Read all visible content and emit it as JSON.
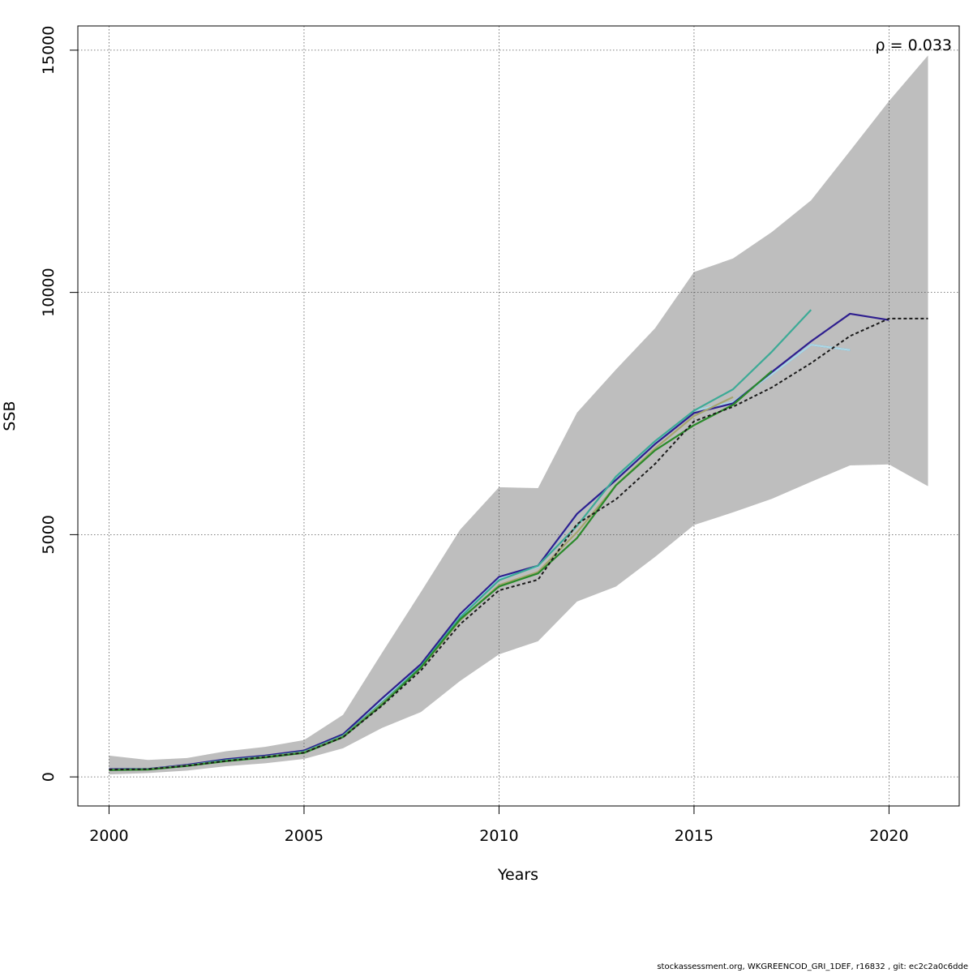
{
  "chart_data": {
    "type": "line",
    "xlabel": "Years",
    "ylabel": "SSB",
    "xlim": [
      1999.2,
      2021.8
    ],
    "ylim": [
      -600,
      15500
    ],
    "x_ticks": [
      "2000",
      "2005",
      "2010",
      "2015",
      "2020"
    ],
    "y_ticks": [
      "0",
      "5000",
      "10000",
      "15000"
    ],
    "grid": true,
    "annotation": "ρ = 0.033",
    "confidence_band": {
      "x": [
        2000,
        2001,
        2002,
        2003,
        2004,
        2005,
        2006,
        2007,
        2008,
        2009,
        2010,
        2011,
        2012,
        2013,
        2014,
        2015,
        2016,
        2017,
        2018,
        2019,
        2020,
        2021
      ],
      "upper": [
        440,
        350,
        390,
        530,
        620,
        760,
        1280,
        2560,
        3820,
        5100,
        5980,
        5960,
        7520,
        8410,
        9260,
        10420,
        10700,
        11250,
        11900,
        12920,
        13950,
        14890
      ],
      "lower": [
        50,
        80,
        130,
        220,
        280,
        370,
        590,
        1010,
        1340,
        1980,
        2530,
        2800,
        3620,
        3930,
        4540,
        5200,
        5460,
        5740,
        6090,
        6430,
        6450,
        6000
      ],
      "color": "#bebebe"
    },
    "series": [
      {
        "color": "#2b8cbe",
        "x": [
          2000,
          2001,
          2002,
          2003,
          2004,
          2005,
          2006,
          2007,
          2008,
          2009,
          2010,
          2011,
          2012,
          2013,
          2014,
          2015,
          2016,
          2017,
          2018,
          2019
        ],
        "y": [
          160,
          165,
          240,
          350,
          430,
          530,
          860,
          1590,
          2310,
          3320,
          4100,
          4340,
          5420,
          6140,
          6900,
          7560,
          7740,
          8310,
          8920,
          8810
        ]
      },
      {
        "color": "#add8e6",
        "x": [
          2000,
          2001,
          2002,
          2003,
          2004,
          2005,
          2006,
          2007,
          2008,
          2009,
          2010,
          2011,
          2012,
          2013,
          2014,
          2015,
          2016,
          2017,
          2018,
          2019
        ],
        "y": [
          160,
          165,
          240,
          350,
          430,
          530,
          860,
          1590,
          2310,
          3320,
          4100,
          4340,
          5420,
          6140,
          6900,
          7560,
          7740,
          8310,
          8920,
          8810
        ]
      },
      {
        "color": "#2e1e8f",
        "x": [
          2000,
          2001,
          2002,
          2003,
          2004,
          2005,
          2006,
          2007,
          2008,
          2009,
          2010,
          2011,
          2012,
          2013,
          2014,
          2015,
          2016,
          2017,
          2018,
          2019,
          2020
        ],
        "y": [
          160,
          165,
          250,
          365,
          440,
          545,
          880,
          1620,
          2330,
          3360,
          4130,
          4360,
          5430,
          6130,
          6870,
          7510,
          7710,
          8360,
          8990,
          9560,
          9430
        ]
      },
      {
        "color": "#3caa96",
        "x": [
          2000,
          2001,
          2002,
          2003,
          2004,
          2005,
          2006,
          2007,
          2008,
          2009,
          2010,
          2011,
          2012,
          2013,
          2014,
          2015,
          2016,
          2017,
          2018
        ],
        "y": [
          150,
          160,
          235,
          345,
          420,
          520,
          850,
          1530,
          2280,
          3290,
          4060,
          4360,
          5180,
          6200,
          6930,
          7560,
          8000,
          8780,
          9640
        ]
      },
      {
        "color": "#a5a56e",
        "x": [
          2000,
          2001,
          2002,
          2003,
          2004,
          2005,
          2006,
          2007,
          2008,
          2009,
          2010,
          2011,
          2012,
          2013,
          2014,
          2015,
          2016
        ],
        "y": [
          145,
          155,
          230,
          330,
          410,
          505,
          830,
          1510,
          2250,
          3230,
          3960,
          4230,
          5050,
          6020,
          6780,
          7450,
          7840
        ]
      },
      {
        "color": "#2a8a2a",
        "x": [
          2000,
          2001,
          2002,
          2003,
          2004,
          2005,
          2006,
          2007,
          2008,
          2009,
          2010,
          2011,
          2012,
          2013,
          2014,
          2015,
          2016,
          2017
        ],
        "y": [
          140,
          150,
          225,
          325,
          400,
          495,
          820,
          1490,
          2260,
          3250,
          3930,
          4200,
          4930,
          6020,
          6740,
          7260,
          7680,
          8380
        ]
      },
      {
        "color": "#1a1a1a",
        "dashed": true,
        "x": [
          2000,
          2001,
          2002,
          2003,
          2004,
          2005,
          2006,
          2007,
          2008,
          2009,
          2010,
          2011,
          2012,
          2013,
          2014,
          2015,
          2016,
          2017,
          2018,
          2019,
          2020,
          2021
        ],
        "y": [
          150,
          160,
          230,
          330,
          410,
          500,
          820,
          1470,
          2200,
          3150,
          3850,
          4070,
          5220,
          5730,
          6460,
          7340,
          7640,
          8040,
          8540,
          9100,
          9460,
          9460
        ]
      }
    ]
  },
  "footer": "stockassessment.org, WKGREENCOD_GRI_1DEF, r16832 , git: ec2c2a0c6dde"
}
